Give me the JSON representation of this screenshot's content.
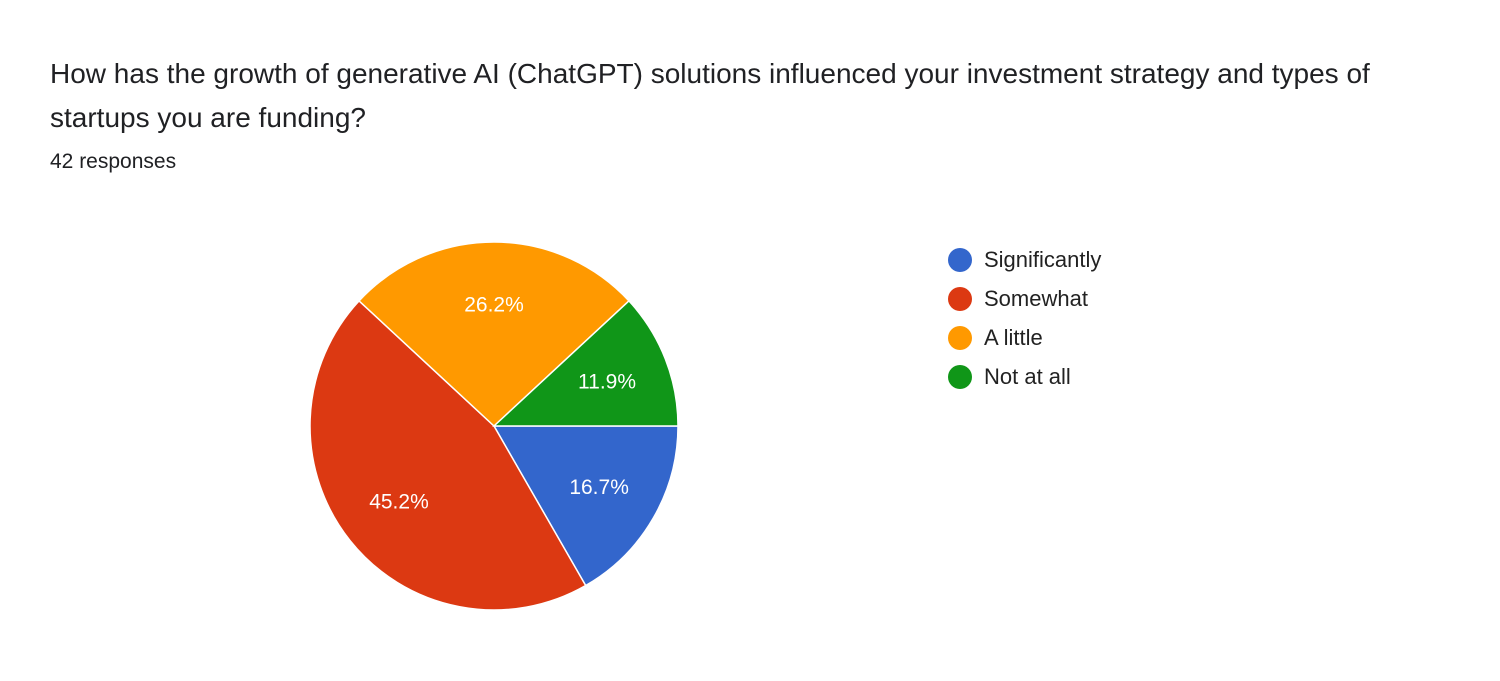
{
  "question": "How has the growth of generative AI (ChatGPT) solutions influenced your investment strategy and types of startups you are funding?",
  "responses": "42 responses",
  "chart_data": {
    "type": "pie",
    "start_angle": "3 o'clock, clockwise",
    "legend_position": "right",
    "slices": [
      {
        "label": "Significantly",
        "value": 16.7,
        "value_label": "16.7%",
        "color": "#3366cc"
      },
      {
        "label": "Somewhat",
        "value": 45.2,
        "value_label": "45.2%",
        "color": "#dc3912"
      },
      {
        "label": "A little",
        "value": 26.2,
        "value_label": "26.2%",
        "color": "#ff9900"
      },
      {
        "label": "Not at all",
        "value": 11.9,
        "value_label": "11.9%",
        "color": "#109618"
      }
    ]
  }
}
